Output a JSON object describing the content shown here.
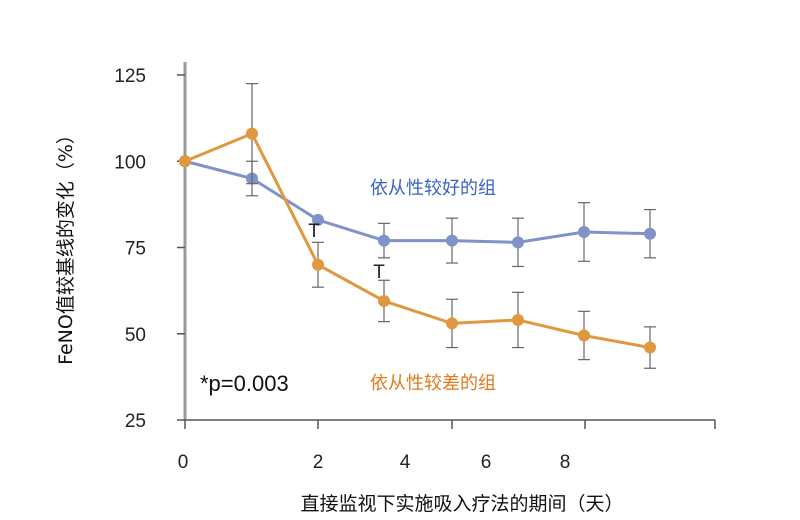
{
  "chart_data": {
    "type": "line",
    "ylabel": "FeNO值较基线的变化（%）",
    "xlabel": "直接监视下实施吸入疗法的期间（天）",
    "ylim": [
      25,
      125
    ],
    "yticks": [
      "125",
      "100",
      "75",
      "50",
      "25"
    ],
    "ytick_values": [
      125,
      100,
      75,
      50,
      25
    ],
    "xlim": [
      0,
      10
    ],
    "xticks": [
      "0",
      "2",
      "4",
      "6",
      "8"
    ],
    "xtick_values": [
      0,
      2.05,
      3.4,
      4.6,
      5.8
    ],
    "annotation": "*p=0.003",
    "markers": [
      "T",
      "T"
    ],
    "marker_points": [
      [
        2.0,
        77
      ],
      [
        3.0,
        69
      ]
    ],
    "series": [
      {
        "name": "依从性较好的组",
        "color": "#7f93c9",
        "label_color": "#3a63c4",
        "x": [
          0,
          1,
          2,
          3,
          4,
          5,
          6,
          7
        ],
        "y": [
          100,
          95,
          83,
          77,
          77,
          76.5,
          79.5,
          79
        ],
        "err": [
          0,
          5,
          0,
          5,
          6.5,
          7,
          8.5,
          7
        ]
      },
      {
        "name": "依从性较差的组",
        "color": "#e0983f",
        "label_color": "#e07a20",
        "x": [
          0,
          1,
          2,
          3,
          4,
          5,
          6,
          7
        ],
        "y": [
          100,
          108,
          70,
          59.5,
          53,
          54,
          49.5,
          46
        ],
        "err": [
          0,
          14.5,
          6.5,
          6,
          7,
          8,
          7,
          6
        ]
      }
    ]
  }
}
